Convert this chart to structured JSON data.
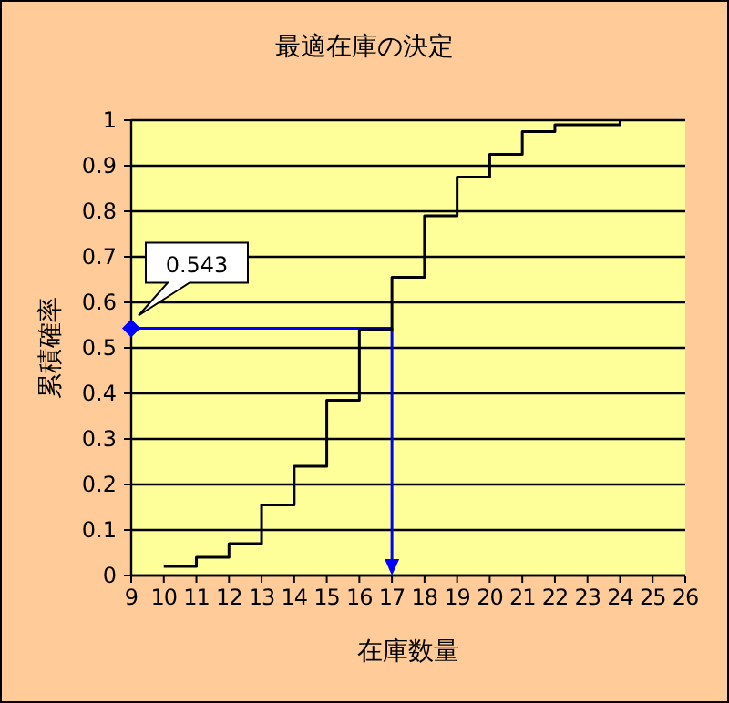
{
  "chart_data": {
    "type": "step",
    "title": "最適在庫の決定",
    "xlabel": "在庫数量",
    "ylabel": "累積確率",
    "x": [
      10,
      11,
      12,
      13,
      14,
      15,
      16,
      17,
      18,
      19,
      20,
      21,
      22,
      23,
      24
    ],
    "series": [
      {
        "color": "#000000",
        "values": [
          0.02,
          0.04,
          0.07,
          0.155,
          0.24,
          0.385,
          0.54,
          0.655,
          0.79,
          0.875,
          0.925,
          0.975,
          0.99,
          0.99,
          1.0
        ]
      }
    ],
    "xlim": [
      9,
      26
    ],
    "xticks": [
      9,
      10,
      11,
      12,
      13,
      14,
      15,
      16,
      17,
      18,
      19,
      20,
      21,
      22,
      23,
      24,
      25,
      26
    ],
    "ylim": [
      0,
      1
    ],
    "yticks": [
      0,
      0.1,
      0.2,
      0.3,
      0.4,
      0.5,
      0.6,
      0.7,
      0.8,
      0.9,
      1
    ],
    "grid": "y",
    "marker": "none",
    "annotations": [
      {
        "text": "0.543",
        "x": 9,
        "y": 0.543
      }
    ],
    "ref_lines": [
      {
        "axis": "y",
        "value": 0.543,
        "color": "#0000ff"
      },
      {
        "axis": "x",
        "value": 17,
        "color": "#0000ff"
      }
    ]
  }
}
